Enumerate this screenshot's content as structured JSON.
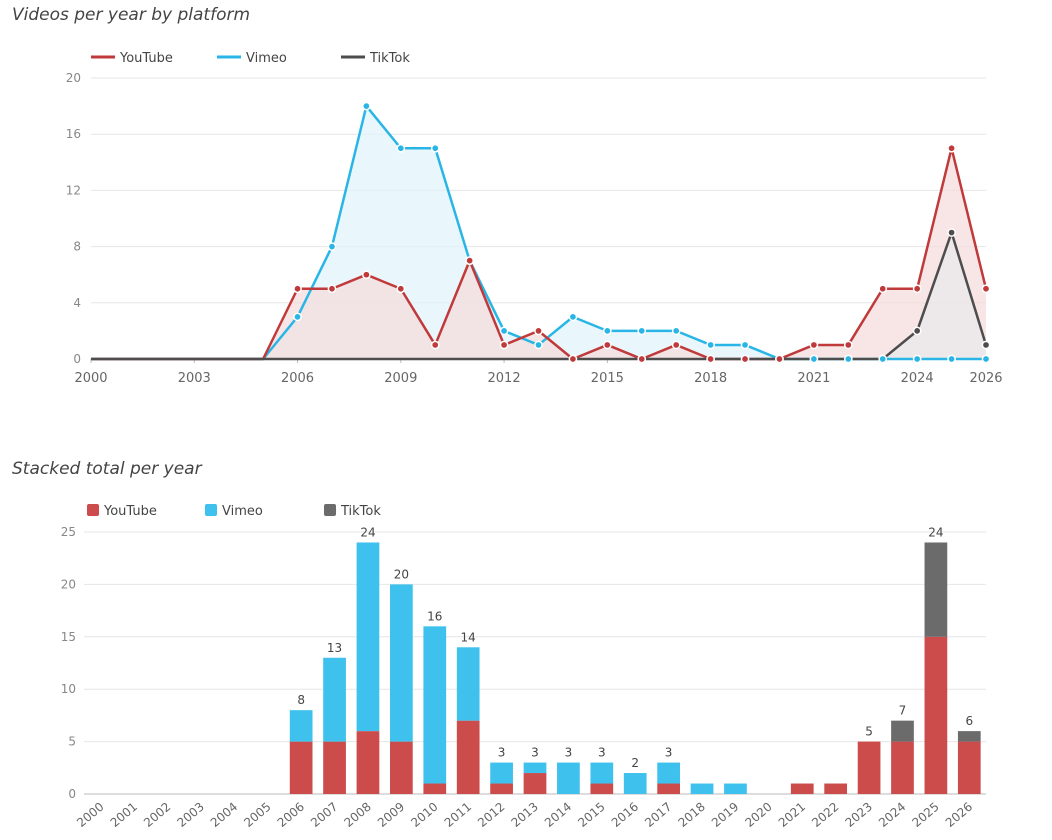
{
  "chart_data": [
    {
      "type": "area",
      "title": "Videos per year by platform",
      "xlabel": "",
      "ylabel": "",
      "x": [
        2000,
        2001,
        2002,
        2003,
        2004,
        2005,
        2006,
        2007,
        2008,
        2009,
        2010,
        2011,
        2012,
        2013,
        2014,
        2015,
        2016,
        2017,
        2018,
        2019,
        2020,
        2021,
        2022,
        2023,
        2024,
        2025,
        2026
      ],
      "xticks": [
        "2000",
        "2003",
        "2006",
        "2009",
        "2012",
        "2015",
        "2018",
        "2021",
        "2024",
        "2026"
      ],
      "ylim": [
        0,
        20
      ],
      "yticks": [
        "0",
        "4",
        "8",
        "12",
        "16",
        "20"
      ],
      "grid": true,
      "legend_position": "top-left",
      "series": [
        {
          "name": "YouTube",
          "color": "#c0393b",
          "fill": "#f5dcdc",
          "values": [
            0,
            0,
            0,
            0,
            0,
            0,
            5,
            5,
            6,
            5,
            1,
            7,
            1,
            2,
            0,
            1,
            0,
            1,
            0,
            0,
            0,
            1,
            1,
            5,
            5,
            15,
            5
          ]
        },
        {
          "name": "Vimeo",
          "color": "#29b6e6",
          "fill": "#dff3fb",
          "values": [
            0,
            0,
            0,
            0,
            0,
            0,
            3,
            8,
            18,
            15,
            15,
            7,
            2,
            1,
            3,
            2,
            2,
            2,
            1,
            1,
            0,
            0,
            0,
            0,
            0,
            0,
            0
          ]
        },
        {
          "name": "TikTok",
          "color": "#4d4d4d",
          "fill": "#e8e8ea",
          "values": [
            0,
            0,
            0,
            0,
            0,
            0,
            0,
            0,
            0,
            0,
            0,
            0,
            0,
            0,
            0,
            0,
            0,
            0,
            0,
            0,
            0,
            0,
            0,
            0,
            2,
            9,
            1
          ]
        }
      ]
    },
    {
      "type": "bar",
      "stacked": true,
      "title": "Stacked total per year",
      "xlabel": "",
      "ylabel": "",
      "categories": [
        "2000",
        "2001",
        "2002",
        "2003",
        "2004",
        "2005",
        "2006",
        "2007",
        "2008",
        "2009",
        "2010",
        "2011",
        "2012",
        "2013",
        "2014",
        "2015",
        "2016",
        "2017",
        "2018",
        "2019",
        "2020",
        "2021",
        "2022",
        "2023",
        "2024",
        "2025",
        "2026"
      ],
      "ylim": [
        0,
        25
      ],
      "yticks": [
        "0",
        "5",
        "10",
        "15",
        "20",
        "25"
      ],
      "grid": true,
      "legend_position": "top-left",
      "series": [
        {
          "name": "YouTube",
          "color": "#cc4b4b",
          "values": [
            0,
            0,
            0,
            0,
            0,
            0,
            5,
            5,
            6,
            5,
            1,
            7,
            1,
            2,
            0,
            1,
            0,
            1,
            0,
            0,
            0,
            1,
            1,
            5,
            5,
            15,
            5
          ]
        },
        {
          "name": "Vimeo",
          "color": "#3ec1ec",
          "values": [
            0,
            0,
            0,
            0,
            0,
            0,
            3,
            8,
            18,
            15,
            15,
            7,
            2,
            1,
            3,
            2,
            2,
            2,
            1,
            1,
            0,
            0,
            0,
            0,
            0,
            0,
            0
          ]
        },
        {
          "name": "TikTok",
          "color": "#6b6b6b",
          "values": [
            0,
            0,
            0,
            0,
            0,
            0,
            0,
            0,
            0,
            0,
            0,
            0,
            0,
            0,
            0,
            0,
            0,
            0,
            0,
            0,
            0,
            0,
            0,
            0,
            2,
            9,
            1
          ]
        }
      ],
      "data_labels": [
        "",
        "",
        "",
        "",
        "",
        "",
        "8",
        "13",
        "24",
        "20",
        "16",
        "14",
        "3",
        "3",
        "3",
        "3",
        "2",
        "3",
        "",
        "",
        "",
        "",
        "",
        "5",
        "7",
        "24",
        "6"
      ]
    }
  ]
}
